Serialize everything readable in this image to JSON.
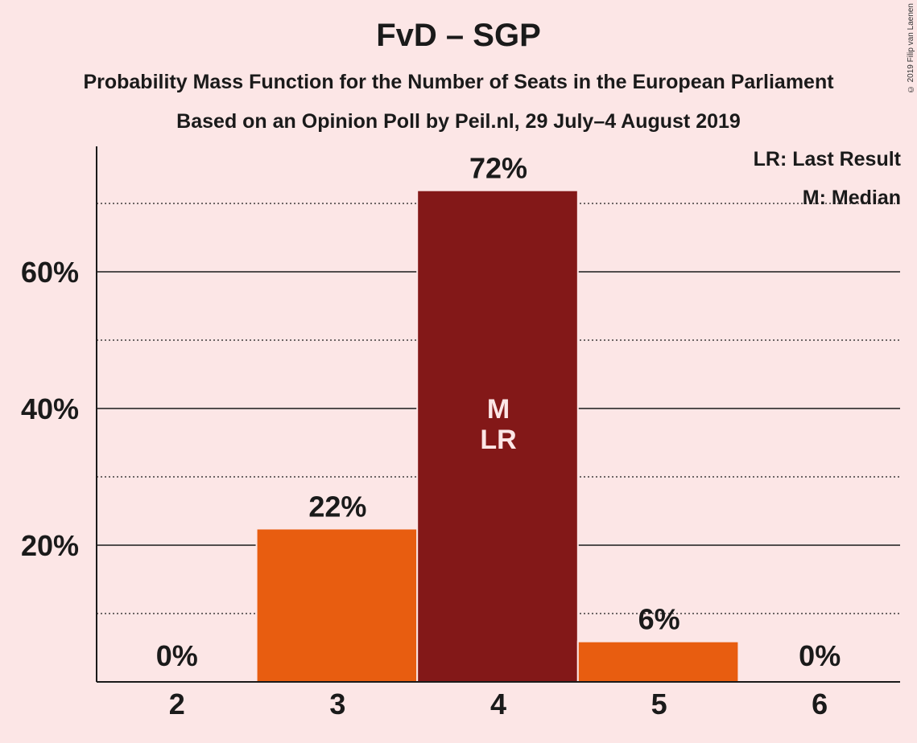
{
  "header": {
    "title": "FvD – SGP",
    "subtitle1": "Probability Mass Function for the Number of Seats in the European Parliament",
    "subtitle2": "Based on an Opinion Poll by Peil.nl, 29 July–4 August 2019",
    "copyright": "© 2019 Filip van Laenen"
  },
  "legend": {
    "lr": "LR: Last Result",
    "m": "M: Median"
  },
  "colors": {
    "background": "#fce6e6",
    "bar_normal": "#e85d10",
    "bar_highlight": "#831818",
    "axis": "#1a1a1a"
  },
  "chart_data": {
    "type": "bar",
    "categories": [
      "2",
      "3",
      "4",
      "5",
      "6"
    ],
    "values": [
      0,
      22.3,
      71.8,
      5.8,
      0
    ],
    "data_labels": [
      "0%",
      "22%",
      "72%",
      "6%",
      "0%"
    ],
    "highlight_index": 2,
    "inner_labels": [
      "",
      "",
      "M\nLR",
      "",
      ""
    ],
    "ylim": [
      0,
      78
    ],
    "yticks": [
      20,
      40,
      60
    ],
    "ytick_labels": [
      "20%",
      "40%",
      "60%"
    ],
    "dotted_gridlines": [
      10,
      30,
      50,
      70
    ],
    "grid": true,
    "legend_position": "top-right",
    "title": "FvD – SGP",
    "xlabel": "",
    "ylabel": ""
  }
}
